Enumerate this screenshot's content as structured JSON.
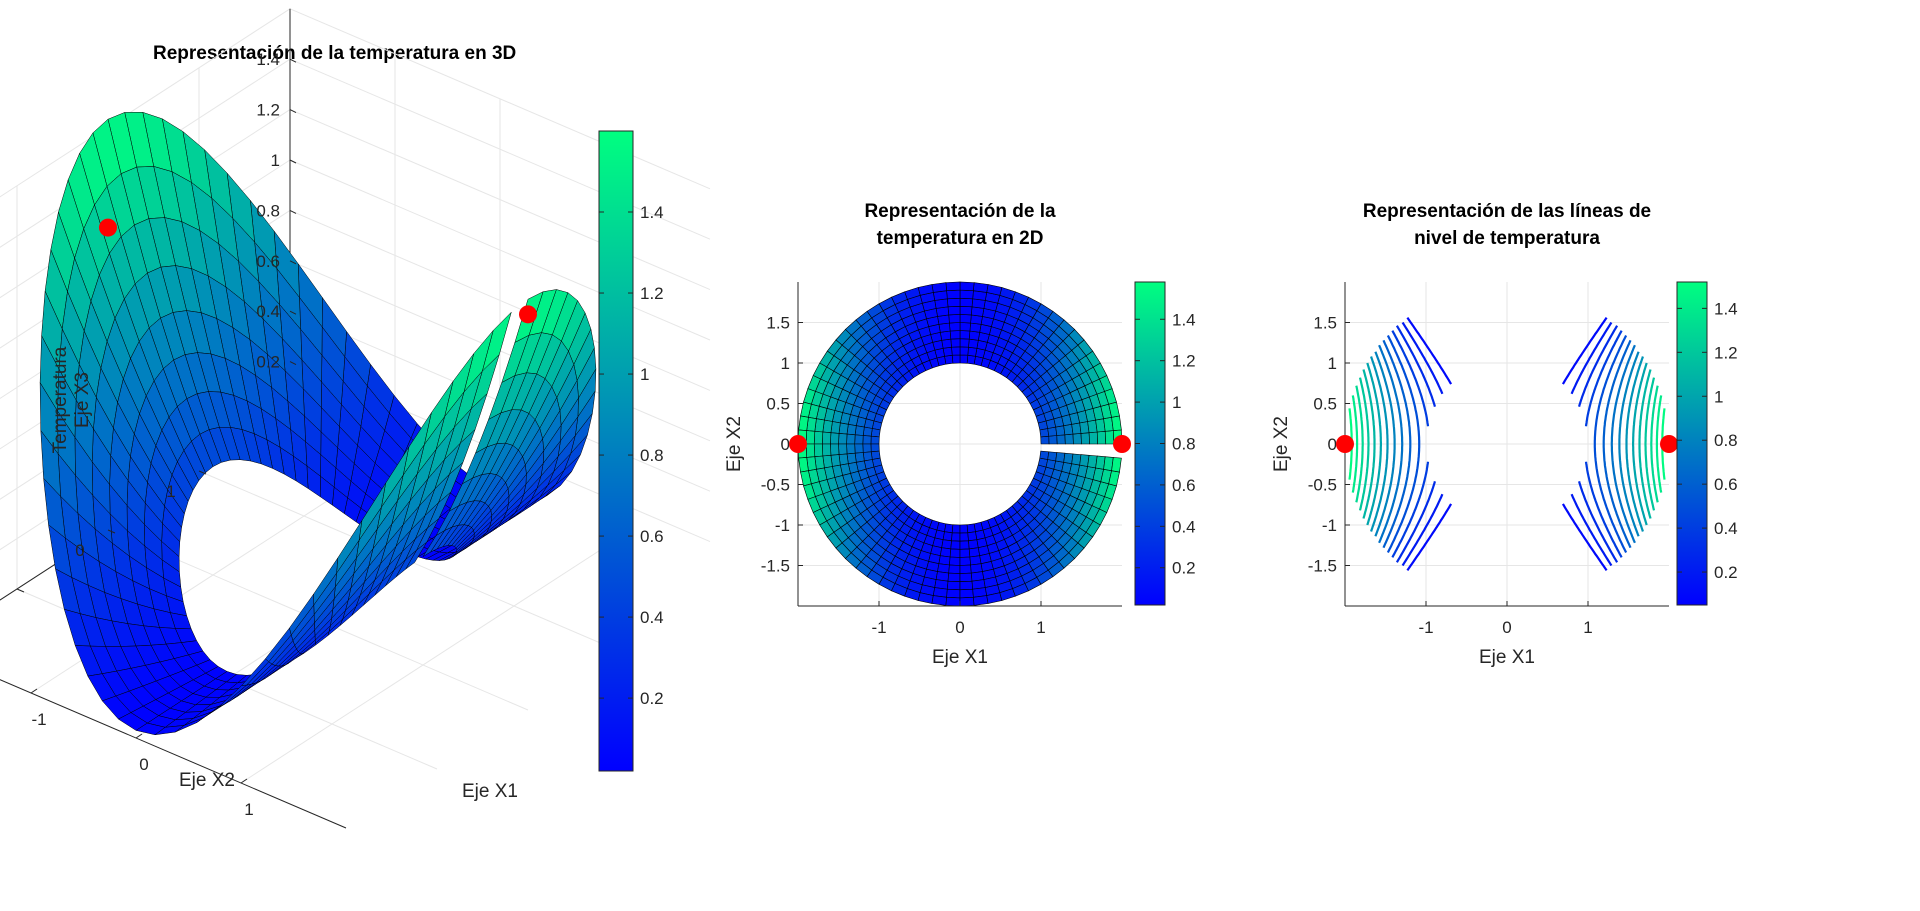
{
  "figure": {
    "background": "#ffffff",
    "colormap": "winter",
    "colormap_colors": [
      "#0000ff",
      "#00ff80"
    ]
  },
  "chart_data": [
    {
      "type": "surface3d",
      "title": "Representación de la temperatura en 3D",
      "xlabel": "Eje X1",
      "ylabel": "Eje X2",
      "zlabel_line1": "Temperatura",
      "zlabel_line2": "Eje X3",
      "x_ticks": [
        "-1",
        "0",
        "1"
      ],
      "y_ticks": [
        "-1",
        "0",
        "1"
      ],
      "z_ticks": [
        "0.2",
        "0.4",
        "0.6",
        "0.8",
        "1",
        "1.2",
        "1.4"
      ],
      "domain": "annulus",
      "r_inner": 1,
      "r_outer": 2,
      "zlim": [
        0,
        1.6
      ],
      "grid": true,
      "colorbar": {
        "ticks": [
          "0.2",
          "0.4",
          "0.6",
          "0.8",
          "1",
          "1.2",
          "1.4"
        ],
        "range": [
          0.02,
          1.6
        ]
      },
      "markers": [
        {
          "x1": 2,
          "x2": 0,
          "value": 1.57,
          "color": "#ff0000"
        },
        {
          "x1": -2,
          "x2": 0,
          "value": 1.2,
          "color": "#ff0000"
        }
      ]
    },
    {
      "type": "pcolor",
      "title_line1": "Representación de la",
      "title_line2": "temperatura en 2D",
      "xlabel": "Eje X1",
      "ylabel": "Eje X2",
      "x_ticks": [
        "-1",
        "0",
        "1"
      ],
      "y_ticks": [
        "-1.5",
        "-1",
        "-0.5",
        "0",
        "0.5",
        "1",
        "1.5"
      ],
      "xlim": [
        -2,
        2
      ],
      "ylim": [
        -2,
        2
      ],
      "domain": "annulus",
      "r_inner": 1,
      "r_outer": 2,
      "grid": true,
      "colorbar": {
        "ticks": [
          "0.2",
          "0.4",
          "0.6",
          "0.8",
          "1",
          "1.2",
          "1.4"
        ],
        "range": [
          0.02,
          1.58
        ]
      },
      "markers": [
        {
          "x1": 2,
          "x2": 0,
          "color": "#ff0000"
        },
        {
          "x1": -2,
          "x2": 0,
          "color": "#ff0000"
        }
      ]
    },
    {
      "type": "contour",
      "title_line1": "Representación de las líneas de",
      "title_line2": "nivel de temperatura",
      "xlabel": "Eje X1",
      "ylabel": "Eje X2",
      "x_ticks": [
        "-1",
        "0",
        "1"
      ],
      "y_ticks": [
        "-1.5",
        "-1",
        "-0.5",
        "0",
        "0.5",
        "1",
        "1.5"
      ],
      "xlim": [
        -2,
        2
      ],
      "ylim": [
        -2,
        2
      ],
      "domain": "annulus",
      "r_inner": 1,
      "r_outer": 2,
      "grid": true,
      "levels": [
        0.1,
        0.2,
        0.3,
        0.4,
        0.5,
        0.6,
        0.7,
        0.8,
        0.9,
        1.0,
        1.1,
        1.2,
        1.3,
        1.4,
        1.5
      ],
      "colorbar": {
        "ticks": [
          "0.2",
          "0.4",
          "0.6",
          "0.8",
          "1",
          "1.2",
          "1.4"
        ],
        "range": [
          0.05,
          1.52
        ]
      },
      "markers": [
        {
          "x1": 2,
          "x2": 0,
          "color": "#ff0000"
        },
        {
          "x1": -2,
          "x2": 0,
          "color": "#ff0000"
        }
      ]
    }
  ]
}
